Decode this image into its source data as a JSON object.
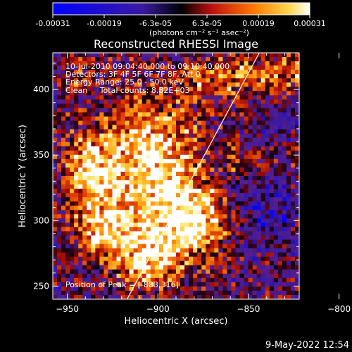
{
  "colorbar": {
    "ticks": [
      "-0.00031",
      "-0.00019",
      "-6.3e-05",
      "6.3e-05",
      "0.00019",
      "0.00031"
    ],
    "unit_label": "(photons cm⁻² s⁻¹ asec⁻²)"
  },
  "chart_data": {
    "type": "heatmap",
    "title": "Reconstructed RHESSI Image",
    "xlabel": "Heliocentric X (arcsec)",
    "ylabel": "Heliocentric Y (arcsec)",
    "xlim": [
      -958,
      -822
    ],
    "ylim": [
      240,
      428
    ],
    "x_ticks": [
      -950,
      -900,
      -850,
      -800
    ],
    "y_ticks": [
      250,
      300,
      350,
      400
    ],
    "colormap": "heat-diverging",
    "clim": [
      -0.00031,
      0.00031
    ],
    "info_lines": [
      "10-Jul-2010 09:04:40.000 to 09:10:40.000",
      "Detectors: 3F 4F 5F 6F 7F 8F, Att 0",
      "Energy Range: 25.0 - 50.0 keV",
      "Clean     Total counts: 8.82E+03"
    ],
    "peak_label": "Position of Peak = [-883,316]",
    "limb_line": {
      "x": [
        -917,
        -844
      ],
      "y": [
        240,
        428
      ]
    }
  },
  "timestamp": "9-May-2022 12:54"
}
